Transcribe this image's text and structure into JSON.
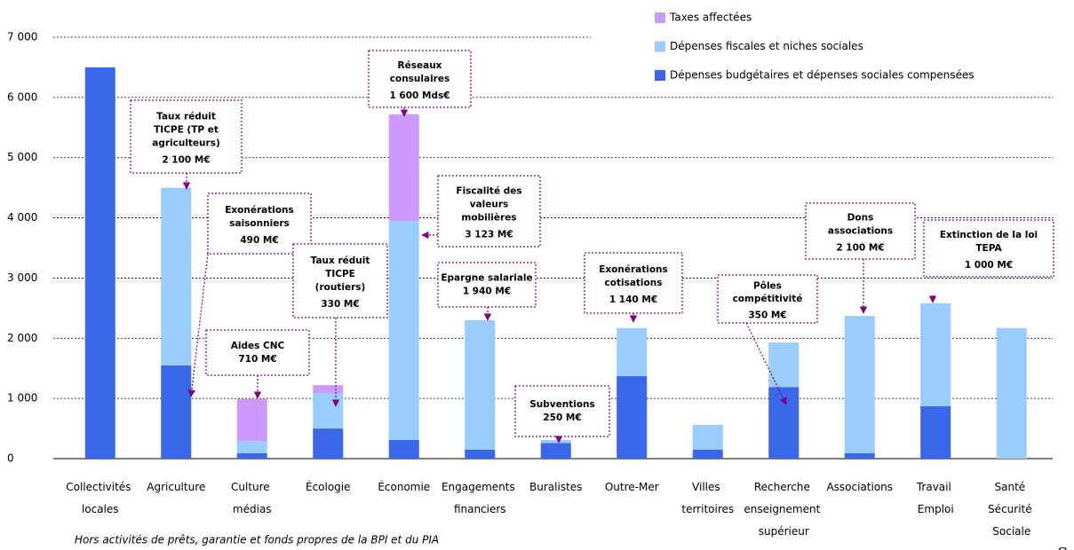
{
  "chart_data": {
    "type": "stacked_bar",
    "categories": [
      "Collectivités locales",
      "Agriculture",
      "Culture médias",
      "Écologie",
      "Économie",
      "Engagements financiers",
      "Buralistes",
      "Outre-Mer",
      "Villes territoires",
      "Recherche enseignement supérieur",
      "Associations",
      "Travail Emploi",
      "Santé Sécurité Sociale"
    ],
    "series": [
      {
        "name": "Dépenses budgétaires et dépenses sociales compensées",
        "color": "#3a66e8",
        "values": [
          6500,
          1550,
          90,
          500,
          310,
          150,
          260,
          1370,
          150,
          1190,
          90,
          870,
          0
        ]
      },
      {
        "name": "Dépenses fiscales et niches sociales",
        "color": "#99ccff",
        "values": [
          0,
          2950,
          200,
          590,
          3640,
          2150,
          50,
          800,
          410,
          740,
          2280,
          1710,
          2170
        ]
      },
      {
        "name": "Taxes affectées",
        "color": "#cc99ff",
        "values": [
          0,
          0,
          700,
          130,
          1770,
          0,
          0,
          0,
          0,
          0,
          0,
          0,
          0
        ]
      }
    ],
    "ylim": [
      0,
      7000
    ],
    "yticks": [
      0,
      {
        "value": 1000,
        "label": "1 000"
      },
      {
        "value": 2000,
        "label": "2 000"
      },
      {
        "value": 3000,
        "label": "3 000"
      },
      {
        "value": 4000,
        "label": "4 000"
      },
      {
        "value": 5000,
        "label": "5 000"
      },
      {
        "value": 6000,
        "label": "6 000"
      },
      {
        "value": 7000,
        "label": "7 000"
      }
    ],
    "grid": true,
    "legend": "top-right",
    "annotations": [
      [
        "Taux réduit",
        "TICPE (TP et",
        "agriculteurs)",
        "2 100 M€"
      ],
      [
        "Exonérations",
        "saisonniers",
        "490 M€"
      ],
      [
        "Aides CNC",
        "710 M€"
      ],
      [
        "Taux réduit",
        "TICPE",
        "(routiers)",
        "330 M€"
      ],
      [
        "Réseaux",
        "consulaires",
        "1 600 Mds€"
      ],
      [
        "Fiscalité des",
        "valeurs",
        "mobilières",
        "3 123 M€"
      ],
      [
        "Epargne salariale",
        "1 940 M€"
      ],
      [
        "Subventions",
        "250 M€"
      ],
      [
        "Exonérations",
        "cotisations",
        "1 140 M€"
      ],
      [
        "Pôles",
        "compétitivité",
        "350 M€"
      ],
      [
        "Dons",
        "associations",
        "2 100 M€"
      ],
      [
        "Extinction de la loi",
        "TEPA",
        "1 000 M€"
      ]
    ],
    "footnote": "Hors activités de prêts, garantie et fonds propres de la BPI et du PIA",
    "footer_fragment": "So"
  }
}
